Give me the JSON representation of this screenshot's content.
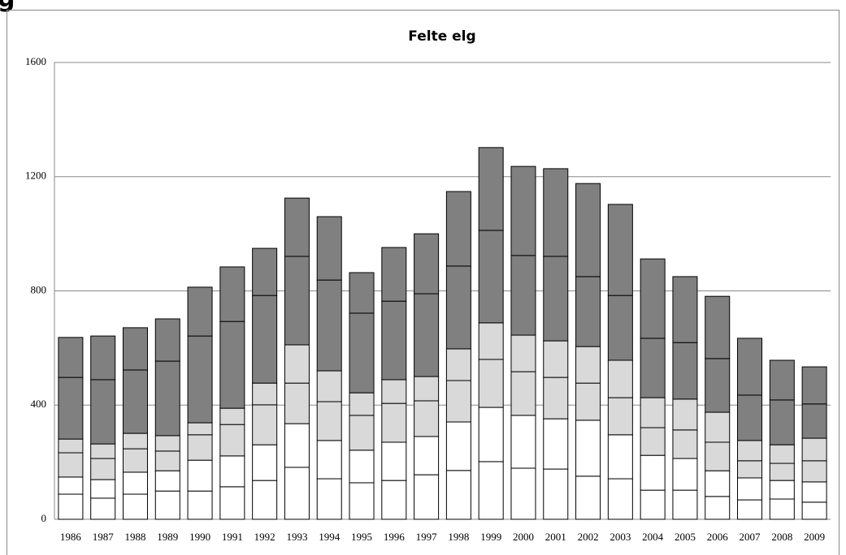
{
  "page_heading": "g",
  "chart_data": {
    "type": "stacked_bar",
    "title": "Felte elg",
    "categories": [
      "1986",
      "1987",
      "1988",
      "1989",
      "1990",
      "1991",
      "1992",
      "1993",
      "1994",
      "1995",
      "1996",
      "1997",
      "1998",
      "1999",
      "2000",
      "2001",
      "2002",
      "2003",
      "2004",
      "2005",
      "2006",
      "2007",
      "2008",
      "2009"
    ],
    "series": [
      {
        "color": "#ffffff",
        "values": [
          88,
          74,
          88,
          99,
          99,
          114,
          136,
          182,
          142,
          128,
          136,
          156,
          171,
          202,
          179,
          176,
          151,
          142,
          102,
          102,
          80,
          68,
          71,
          60
        ]
      },
      {
        "color": "#ffffff",
        "values": [
          60,
          65,
          77,
          71,
          108,
          108,
          125,
          153,
          134,
          114,
          134,
          134,
          170,
          190,
          185,
          176,
          196,
          154,
          122,
          111,
          90,
          77,
          65,
          71
        ]
      },
      {
        "color": "#d9d9d9",
        "values": [
          85,
          74,
          82,
          69,
          89,
          110,
          140,
          142,
          136,
          122,
          136,
          125,
          145,
          168,
          153,
          145,
          130,
          130,
          97,
          100,
          100,
          60,
          60,
          74
        ]
      },
      {
        "color": "#d9d9d9",
        "values": [
          48,
          51,
          54,
          54,
          42,
          57,
          76,
          134,
          108,
          79,
          83,
          85,
          111,
          128,
          128,
          128,
          128,
          131,
          105,
          108,
          105,
          71,
          65,
          79
        ]
      },
      {
        "color": "#808080",
        "values": [
          216,
          225,
          222,
          261,
          304,
          304,
          307,
          310,
          318,
          279,
          275,
          290,
          290,
          324,
          279,
          296,
          245,
          227,
          208,
          198,
          188,
          159,
          157,
          120
        ]
      },
      {
        "color": "#808080",
        "values": [
          140,
          153,
          148,
          148,
          171,
          191,
          165,
          204,
          222,
          142,
          188,
          210,
          261,
          290,
          312,
          307,
          326,
          319,
          278,
          231,
          218,
          199,
          139,
          130
        ]
      }
    ],
    "ylim": [
      0,
      1600
    ],
    "yticks": [
      0,
      400,
      800,
      1200,
      1600
    ],
    "grid": true
  }
}
